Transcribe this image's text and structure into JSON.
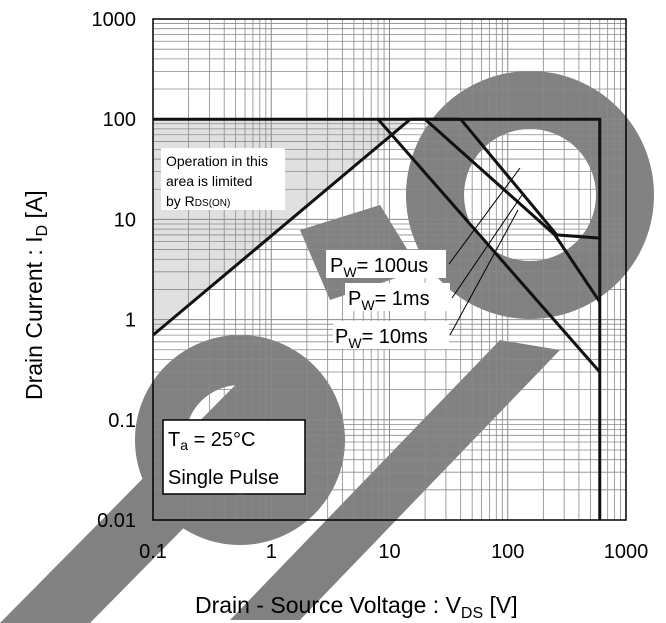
{
  "chart_data": {
    "type": "line",
    "scale": {
      "x": "log",
      "y": "log"
    },
    "xlim": [
      0.1,
      1000
    ],
    "ylim": [
      0.01,
      1000
    ],
    "grid": true,
    "x_ticks": [
      "0.1",
      "1",
      "10",
      "100",
      "1000"
    ],
    "y_ticks": [
      "1000",
      "100",
      "10",
      "1",
      "0.1",
      "0.01"
    ],
    "xlabel": {
      "main": "Drain - Source Voltage : V",
      "sub": "DS",
      "unit": " [V]"
    },
    "ylabel": {
      "main": "Drain Current : I",
      "sub": "D",
      "unit": " [A]"
    },
    "series": [
      {
        "points": [
          [
            0.1,
            0.7
          ],
          [
            15,
            100
          ],
          [
            600,
            100
          ],
          [
            600,
            0.01
          ]
        ]
      },
      {
        "points": [
          [
            0.1,
            100
          ],
          [
            40,
            100
          ],
          [
            260,
            7
          ],
          [
            600,
            6.5
          ]
        ]
      },
      {
        "points": [
          [
            20,
            100
          ],
          [
            250,
            7
          ],
          [
            600,
            1.5
          ]
        ]
      },
      {
        "points": [
          [
            8,
            100
          ],
          [
            600,
            0.3
          ]
        ]
      }
    ],
    "limited_region": {
      "points": [
        [
          0.1,
          0.7
        ],
        [
          15,
          100
        ],
        [
          0.1,
          100
        ]
      ],
      "fill": "#e0e0e0"
    },
    "annotations": {
      "rds_box": {
        "lines": [
          "Operation in this",
          "area is limited",
          "by R"
        ],
        "sub": "DS(ON)"
      },
      "pw_100us": {
        "main": "P",
        "sub": "W",
        "rest": "= 100us"
      },
      "pw_1ms": {
        "main": "P",
        "sub": "W",
        "rest": "= 1ms"
      },
      "pw_10ms": {
        "main": "P",
        "sub": "W",
        "rest": "= 10ms"
      },
      "conditions": {
        "ta_main": "T",
        "ta_sub": "a",
        "ta_rest": " = 25°C",
        "pulse": "Single Pulse"
      }
    },
    "colors": {
      "line": "#111111",
      "grid": "#8a8a8a",
      "watermark": "#7f7f7f"
    }
  }
}
